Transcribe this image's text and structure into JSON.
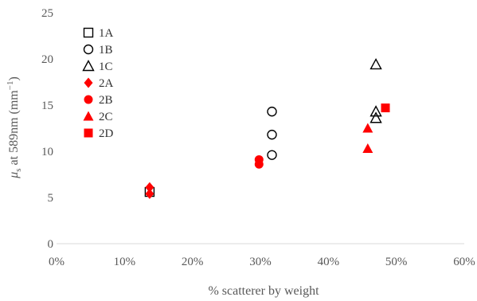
{
  "chart_data": {
    "type": "scatter",
    "title": "",
    "xlabel": "% scatterer by weight",
    "ylabel_parts": {
      "symbol": "μ",
      "sub": "s",
      "rest": " at 589nm (mm",
      "sup": "−1",
      "close": ")"
    },
    "xlim": [
      0,
      0.6
    ],
    "ylim": [
      0,
      25
    ],
    "x_ticks": [
      {
        "value": 0,
        "label": "0%"
      },
      {
        "value": 0.1,
        "label": "10%"
      },
      {
        "value": 0.2,
        "label": "20%"
      },
      {
        "value": 0.3,
        "label": "30%"
      },
      {
        "value": 0.4,
        "label": "40%"
      },
      {
        "value": 0.5,
        "label": "50%"
      },
      {
        "value": 0.6,
        "label": "60%"
      }
    ],
    "y_ticks": [
      {
        "value": 0,
        "label": "0"
      },
      {
        "value": 5,
        "label": "5"
      },
      {
        "value": 10,
        "label": "10"
      },
      {
        "value": 15,
        "label": "15"
      },
      {
        "value": 20,
        "label": "20"
      },
      {
        "value": 25,
        "label": "25"
      }
    ],
    "grid": false,
    "legend_position": "top-left",
    "series": [
      {
        "name": "1A",
        "marker": "square",
        "filled": false,
        "color": "#000000",
        "points": [
          {
            "x": 0.137,
            "y": 5.6
          }
        ]
      },
      {
        "name": "1B",
        "marker": "circle",
        "filled": false,
        "color": "#000000",
        "points": [
          {
            "x": 0.317,
            "y": 14.3
          },
          {
            "x": 0.317,
            "y": 11.8
          },
          {
            "x": 0.317,
            "y": 9.6
          }
        ]
      },
      {
        "name": "1C",
        "marker": "triangle",
        "filled": false,
        "color": "#000000",
        "points": [
          {
            "x": 0.47,
            "y": 19.4
          },
          {
            "x": 0.47,
            "y": 14.3
          },
          {
            "x": 0.47,
            "y": 13.6
          }
        ]
      },
      {
        "name": "2A",
        "marker": "diamond",
        "filled": true,
        "color": "#ff0000",
        "points": [
          {
            "x": 0.137,
            "y": 6.1
          },
          {
            "x": 0.137,
            "y": 5.4
          }
        ]
      },
      {
        "name": "2B",
        "marker": "circle",
        "filled": true,
        "color": "#ff0000",
        "points": [
          {
            "x": 0.298,
            "y": 9.1
          },
          {
            "x": 0.298,
            "y": 8.6
          }
        ]
      },
      {
        "name": "2C",
        "marker": "triangle",
        "filled": true,
        "color": "#ff0000",
        "points": [
          {
            "x": 0.458,
            "y": 12.5
          },
          {
            "x": 0.458,
            "y": 10.3
          }
        ]
      },
      {
        "name": "2D",
        "marker": "square",
        "filled": true,
        "color": "#ff0000",
        "points": [
          {
            "x": 0.484,
            "y": 14.7
          }
        ]
      }
    ]
  }
}
